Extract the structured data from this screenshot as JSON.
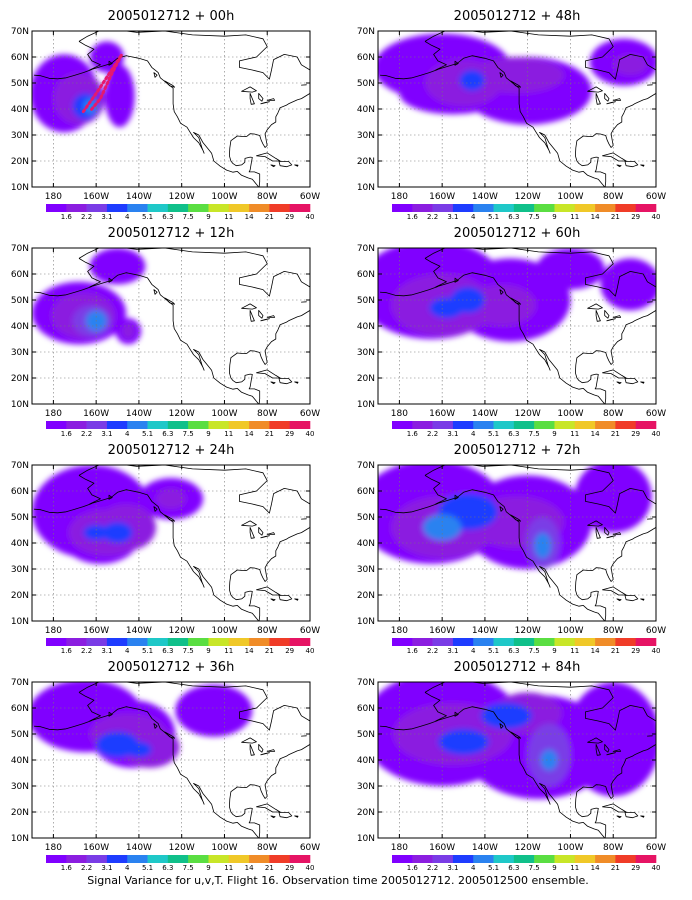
{
  "caption": "Signal Variance for u,v,T. Flight 16. Observation time 2005012712. 2005012500 ensemble.",
  "lat_labels": [
    "10N",
    "20N",
    "30N",
    "40N",
    "50N",
    "60N",
    "70N"
  ],
  "lon_labels": [
    "180",
    "160W",
    "140W",
    "120W",
    "100W",
    "80W",
    "60W"
  ],
  "colorbar_labels": [
    "1.6",
    "2.2",
    "3.1",
    "4",
    "5.1",
    "6.3",
    "7.5",
    "9",
    "11",
    "14",
    "21",
    "29",
    "40"
  ],
  "colors": {
    "levels": [
      "#8000ff",
      "#8b1ee0",
      "#7a3ce6",
      "#1e3cff",
      "#2a82f0",
      "#1fc8c8",
      "#10c08a",
      "#5ade42",
      "#c8e628",
      "#f0c828",
      "#f08c28",
      "#f03c28",
      "#e61464"
    ],
    "track": "#e6186e",
    "coast": "#000000"
  },
  "panels": [
    {
      "title": "2005012712 + 00h",
      "forecast_hour": 0
    },
    {
      "title": "2005012712 + 12h",
      "forecast_hour": 12
    },
    {
      "title": "2005012712 + 24h",
      "forecast_hour": 24
    },
    {
      "title": "2005012712 + 36h",
      "forecast_hour": 36
    },
    {
      "title": "2005012712 + 48h",
      "forecast_hour": 48
    },
    {
      "title": "2005012712 + 60h",
      "forecast_hour": 60
    },
    {
      "title": "2005012712 + 72h",
      "forecast_hour": 72
    },
    {
      "title": "2005012712 + 84h",
      "forecast_hour": 84
    }
  ],
  "map_extent": {
    "lon": [
      -190,
      -60
    ],
    "lat": [
      10,
      70
    ]
  }
}
